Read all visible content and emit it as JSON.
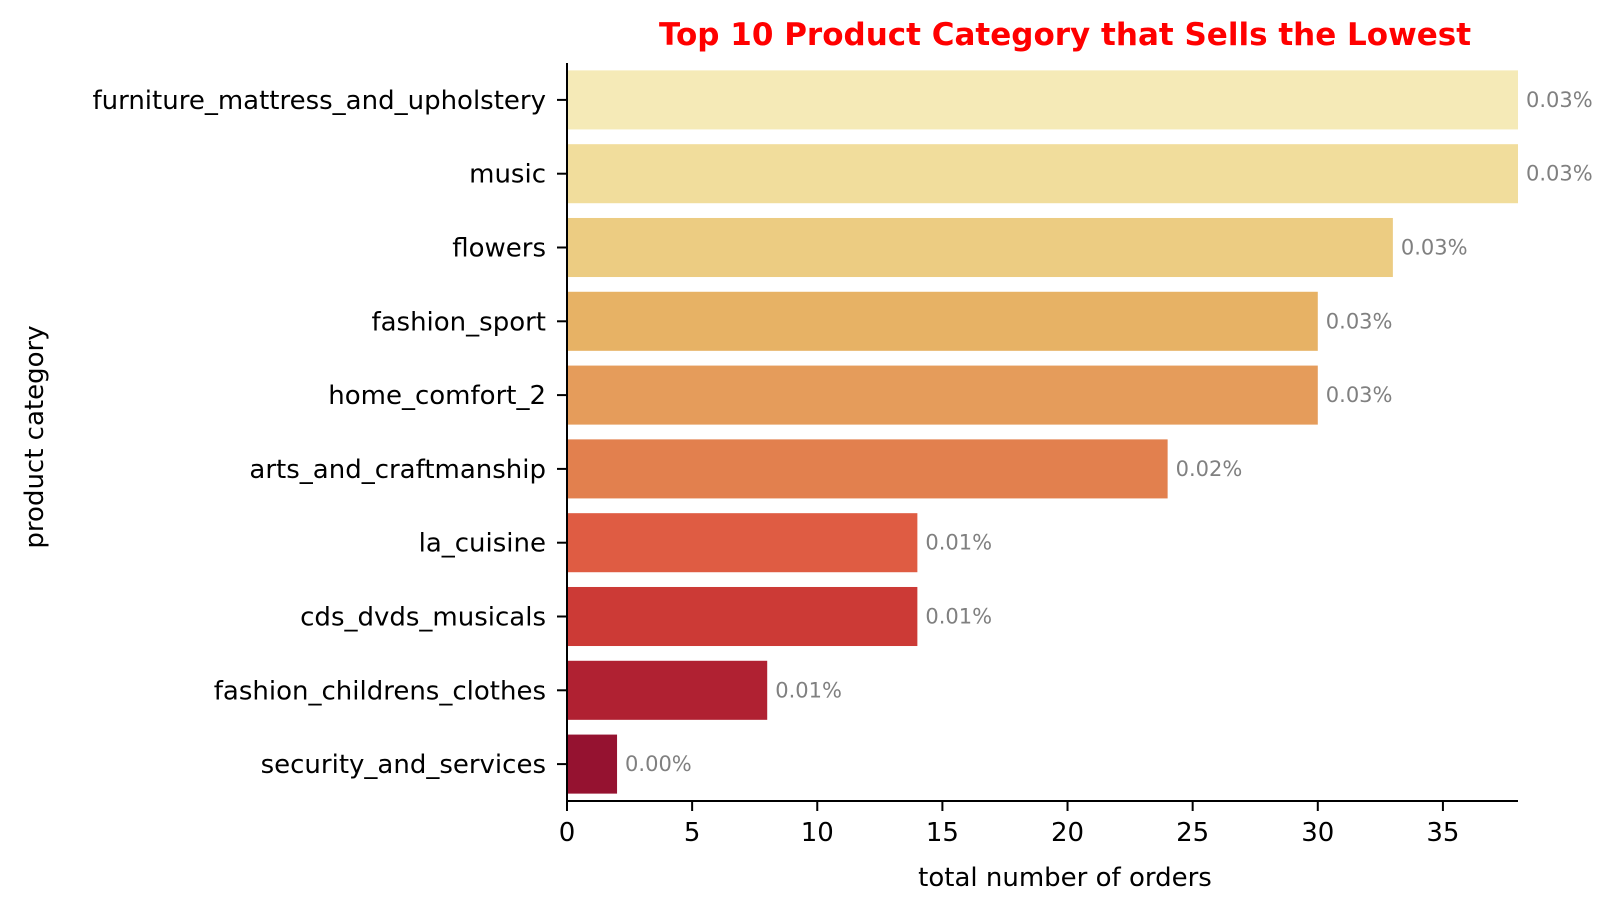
{
  "chart_data": {
    "type": "bar",
    "orientation": "horizontal",
    "title": "Top 10 Product Category that Sells the Lowest",
    "xlabel": "total number of orders",
    "ylabel": "product category",
    "xlim": [
      0,
      38
    ],
    "x_ticks": [
      0,
      5,
      10,
      15,
      20,
      25,
      30,
      35
    ],
    "categories": [
      "furniture_mattress_and_upholstery",
      "music",
      "flowers",
      "fashion_sport",
      "home_comfort_2",
      "arts_and_craftmanship",
      "la_cuisine",
      "cds_dvds_musicals",
      "fashion_childrens_clothes",
      "security_and_services"
    ],
    "values": [
      38,
      38,
      33,
      30,
      30,
      24,
      14,
      14,
      8,
      2
    ],
    "data_labels": [
      "0.03%",
      "0.03%",
      "0.03%",
      "0.03%",
      "0.03%",
      "0.02%",
      "0.01%",
      "0.01%",
      "0.01%",
      "0.00%"
    ],
    "colors": [
      "#f5eab7",
      "#f1dd9c",
      "#eccc82",
      "#e7b265",
      "#e59c5b",
      "#e2804e",
      "#df5c43",
      "#cc3a36",
      "#b02132",
      "#951230"
    ],
    "grid": false,
    "legend": "none"
  }
}
